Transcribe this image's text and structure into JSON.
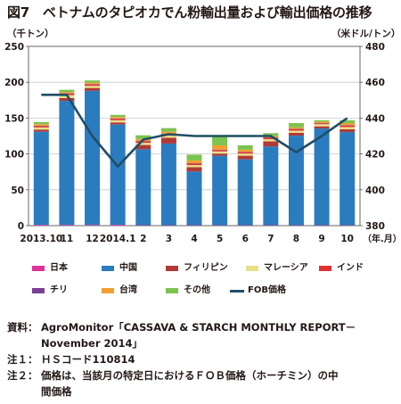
{
  "title": "図7　ベトナムのタピオカでん粉輸出量および輸出価格の推移",
  "chart_data": {
    "type": "bar",
    "stacked": true,
    "left_axis_label": "（千トン）",
    "right_axis_label": "（米ドル/トン）",
    "x_unit_label": "（年.月）",
    "categories": [
      "2013.10",
      "11",
      "12",
      "2014.1",
      "2",
      "3",
      "4",
      "5",
      "6",
      "7",
      "8",
      "9",
      "10"
    ],
    "ylim_left": [
      0,
      250
    ],
    "yticks_left": [
      "0",
      "50",
      "100",
      "150",
      "200",
      "250"
    ],
    "ylim_right": [
      380,
      480
    ],
    "yticks_right": [
      "380",
      "400",
      "420",
      "440",
      "460",
      "480"
    ],
    "grid": true,
    "legend_position": "bottom",
    "series": [
      {
        "name": "日本",
        "color": "#e0309a",
        "values": [
          1,
          1,
          1,
          1,
          0.5,
          0.5,
          0.5,
          0.5,
          0.5,
          0.5,
          0.5,
          0.5,
          0.5
        ]
      },
      {
        "name": "中国",
        "color": "#2b7bbf",
        "values": [
          130,
          173,
          187,
          140,
          106,
          114,
          75,
          97,
          92,
          110,
          125,
          135,
          130
        ]
      },
      {
        "name": "フィリピン",
        "color": "#b03a36",
        "values": [
          3,
          4,
          4,
          3,
          6,
          8,
          6,
          3,
          5,
          7,
          4,
          3,
          4
        ]
      },
      {
        "name": "マレーシア",
        "color": "#e8e088",
        "values": [
          3,
          4,
          3,
          3,
          3,
          3,
          3,
          3,
          3,
          3,
          3,
          3,
          3
        ]
      },
      {
        "name": "インド",
        "color": "#e03232",
        "values": [
          2,
          2,
          2,
          2,
          2,
          2,
          2,
          2,
          2,
          2,
          2,
          1,
          2
        ]
      },
      {
        "name": "チリ",
        "color": "#7b3f98",
        "values": [
          0.5,
          0.5,
          0.5,
          0.5,
          0.5,
          0.5,
          0.5,
          0.5,
          0.5,
          0.5,
          0.5,
          0.5,
          0.5
        ]
      },
      {
        "name": "台湾",
        "color": "#f0a030",
        "values": [
          2,
          2,
          2,
          2,
          3,
          3,
          4,
          6,
          3,
          2,
          2,
          2,
          3
        ]
      },
      {
        "name": "その他",
        "color": "#7cc34f",
        "values": [
          3,
          3,
          3,
          3,
          5,
          5,
          8,
          12,
          6,
          4,
          6,
          2,
          4
        ]
      }
    ],
    "line_series": {
      "name": "FOB価格",
      "color": "#1f4e66",
      "axis": "right",
      "values": [
        453,
        453,
        430,
        413,
        428,
        431,
        430,
        430,
        430,
        430,
        421,
        430,
        440
      ]
    }
  },
  "notes": [
    {
      "label": "資料：",
      "text": "AgroMonitor「CASSAVA & STARCH MONTHLY REPORT－"
    },
    {
      "label": "",
      "text": "November 2014」"
    },
    {
      "label": "注１：",
      "text": "ＨＳコード110814"
    },
    {
      "label": "注２：",
      "text": "価格は、当該月の特定日におけるＦＯＢ価格（ホーチミン）の中"
    },
    {
      "label": "",
      "text": "間価格"
    }
  ]
}
